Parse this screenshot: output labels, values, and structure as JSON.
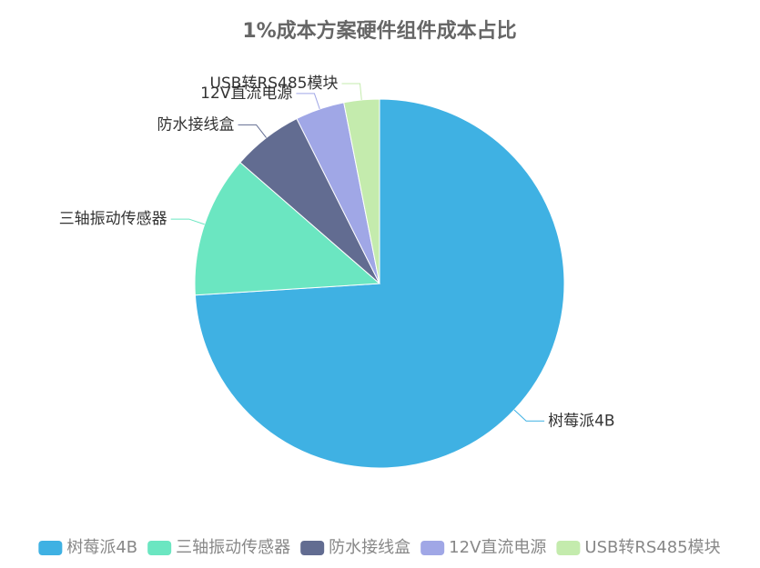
{
  "chart_data": {
    "type": "pie",
    "title": "1%成本方案硬件组件成本占比",
    "categories": [
      "树莓派4B",
      "三轴振动传感器",
      "防水接线盒",
      "12V直流电源",
      "USB转RS485模块"
    ],
    "values": [
      74,
      12.4,
      6.2,
      4.3,
      3.1
    ],
    "colors": [
      "#3fb1e3",
      "#6be6c1",
      "#626c91",
      "#a0a7e6",
      "#c4ebad"
    ],
    "legend": "bottom"
  }
}
